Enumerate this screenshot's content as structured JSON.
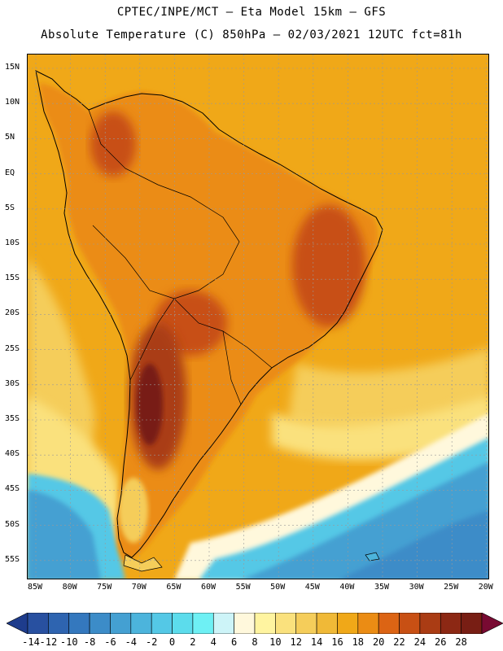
{
  "header": {
    "line1": "CPTEC/INPE/MCT –  Eta Model 15km – GFS",
    "line2": "Absolute Temperature (C) 850hPa – 02/03/2021 12UTC fct=81h"
  },
  "map": {
    "lat_ticks": [
      "15N",
      "10N",
      "5N",
      "EQ",
      "5S",
      "10S",
      "15S",
      "20S",
      "25S",
      "30S",
      "35S",
      "40S",
      "45S",
      "50S",
      "55S"
    ],
    "lon_ticks": [
      "85W",
      "80W",
      "75W",
      "70W",
      "65W",
      "60W",
      "55W",
      "50W",
      "45W",
      "40W",
      "35W",
      "30W",
      "25W",
      "20W"
    ],
    "region": "South America",
    "field": "850hPa absolute temperature"
  },
  "colorbar": {
    "labels": [
      "-14",
      "-12",
      "-10",
      "-8",
      "-6",
      "-4",
      "-2",
      "0",
      "2",
      "4",
      "6",
      "8",
      "10",
      "12",
      "14",
      "16",
      "18",
      "20",
      "22",
      "24",
      "26",
      "28"
    ],
    "colors": [
      "#1e3c8c",
      "#2850a0",
      "#2e64b0",
      "#3478be",
      "#3c8cc8",
      "#44a0d2",
      "#4cb4dc",
      "#54c8e6",
      "#5cdcec",
      "#6ef0f4",
      "#cdf4f8",
      "#fff8dc",
      "#fff4a0",
      "#fae17d",
      "#f5cd5a",
      "#f0b937",
      "#f0a818",
      "#eb8c14",
      "#dc6414",
      "#c85014",
      "#aa3c14",
      "#8c2814",
      "#781e14",
      "#780a32"
    ]
  }
}
